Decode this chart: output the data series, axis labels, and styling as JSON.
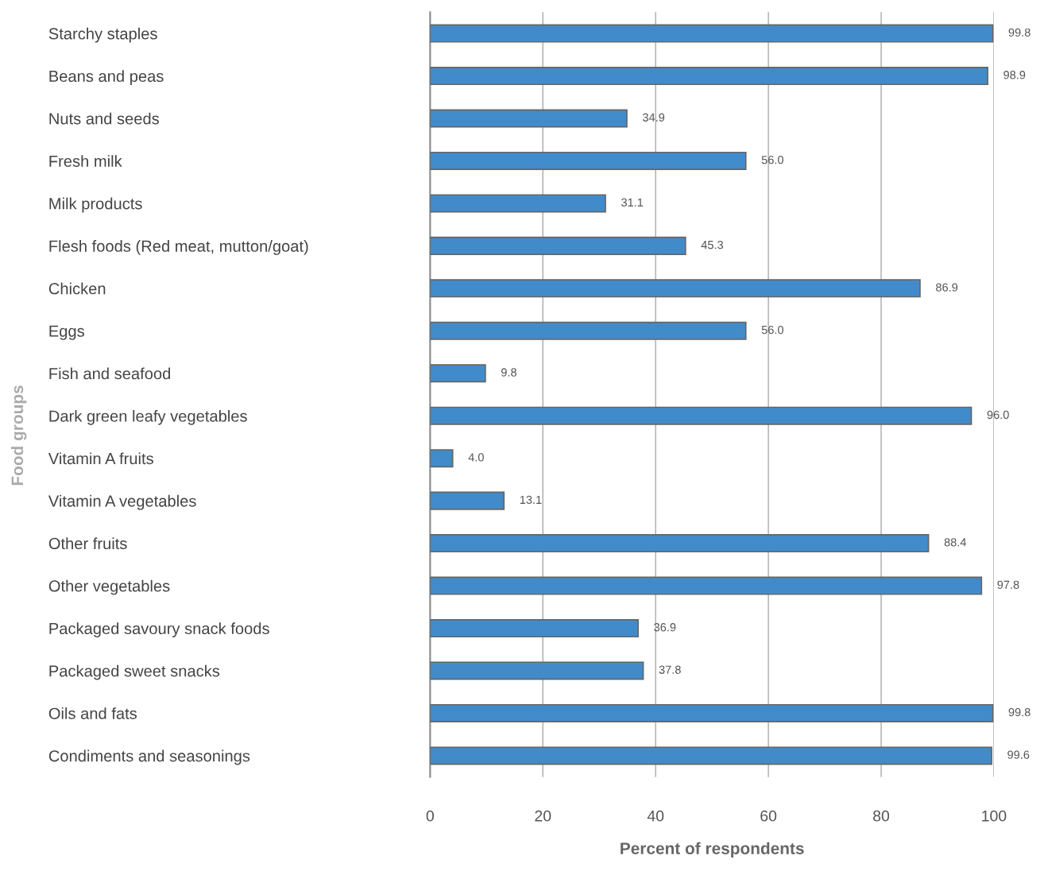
{
  "chart_data": {
    "type": "bar",
    "orientation": "horizontal",
    "xlabel": "Percent of respondents",
    "ylabel": "Food groups",
    "categories": [
      "Starchy staples",
      "Beans and peas",
      "Nuts and seeds",
      "Fresh milk",
      "Milk products",
      "Flesh foods (Red meat, mutton/goat)",
      "Chicken",
      "Eggs",
      "Fish and seafood",
      "Dark green leafy vegetables",
      "Vitamin A fruits",
      "Vitamin A vegetables",
      "Other fruits",
      "Other vegetables",
      "Packaged savoury snack foods",
      "Packaged sweet snacks",
      "Oils and fats",
      "Condiments and seasonings"
    ],
    "values": [
      99.8,
      98.9,
      34.9,
      56.0,
      31.1,
      45.3,
      86.9,
      56.0,
      9.8,
      96.0,
      4.0,
      13.1,
      88.4,
      97.8,
      36.9,
      37.8,
      99.8,
      99.6
    ],
    "value_labels": [
      "99.8",
      "98.9",
      "34.9",
      "56.0",
      "31.1",
      "45.3",
      "86.9",
      "56.0",
      "9.8",
      "96.0",
      "4.0",
      "13.1",
      "88.4",
      "97.8",
      "36.9",
      "37.8",
      "99.8",
      "99.6"
    ],
    "color": "#428bcb",
    "xlim": [
      0,
      100
    ],
    "xticks": [
      0,
      20,
      40,
      60,
      80,
      100
    ],
    "grid": "x",
    "legend": false
  }
}
